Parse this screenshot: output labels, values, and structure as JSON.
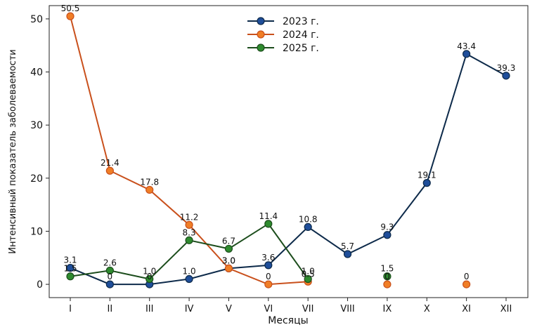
{
  "chart_data": {
    "type": "line",
    "title": "",
    "xlabel": "Месяцы",
    "ylabel": "Интенсивный показатель заболеваемости",
    "categories": [
      "I",
      "II",
      "III",
      "IV",
      "V",
      "VI",
      "VII",
      "VIII",
      "IX",
      "X",
      "XI",
      "XII"
    ],
    "ylim": [
      -2.5,
      52.5
    ],
    "yticks": [
      0,
      10,
      20,
      30,
      40,
      50
    ],
    "legend_position": "top-center",
    "series": [
      {
        "name": "2023 г.",
        "color": "#1f4e9a",
        "line_color": "#0d2a4a",
        "values": [
          3.1,
          0,
          0,
          1.0,
          3.0,
          3.6,
          10.8,
          5.7,
          9.3,
          19.1,
          43.4,
          39.3
        ],
        "labels": [
          "3.1",
          "0",
          "0",
          "1.0",
          "3.0",
          "3.6",
          "10.8",
          "5.7",
          "9.3",
          "19.1",
          "43.4",
          "39.3"
        ]
      },
      {
        "name": "2024 г.",
        "color": "#f07e26",
        "line_color": "#c9501c",
        "values": [
          50.5,
          21.4,
          17.8,
          11.2,
          3.0,
          0,
          0.5,
          null,
          0,
          null,
          0,
          null
        ],
        "labels": [
          "50.5",
          "21.4",
          "17.8",
          "11.2",
          "3.0",
          "0",
          "0.5",
          "",
          "0",
          "",
          "0",
          ""
        ]
      },
      {
        "name": "2025 г.",
        "color": "#2e8b2e",
        "line_color": "#1c4d1c",
        "values": [
          1.5,
          2.6,
          1.0,
          8.3,
          6.7,
          11.4,
          1.0,
          null,
          1.5,
          null,
          null,
          null
        ],
        "labels": [
          "1.5",
          "2.6",
          "1.0",
          "8.3",
          "6.7",
          "11.4",
          "1.0",
          "",
          "1.5",
          "",
          "",
          ""
        ]
      }
    ]
  }
}
